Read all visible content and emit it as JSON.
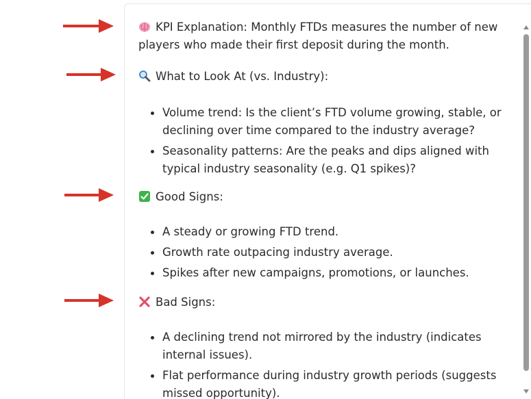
{
  "sections": {
    "kpi": {
      "icon": "brain-icon",
      "text": "KPI Explanation: Monthly FTDs measures the number of new players who made their first deposit during the month."
    },
    "look": {
      "icon": "magnifying-glass-icon",
      "heading": "What to Look At (vs. Industry):",
      "items": [
        "Volume trend: Is the client’s FTD volume growing, stable, or declining over time compared to the industry average?",
        "Seasonality patterns: Are the peaks and dips aligned with typical industry seasonality (e.g. Q1 spikes)?"
      ]
    },
    "good": {
      "icon": "check-mark-icon",
      "heading": "Good Signs:",
      "items": [
        "A steady or growing FTD trend.",
        "Growth rate outpacing industry average.",
        "Spikes after new campaigns, promotions, or launches."
      ]
    },
    "bad": {
      "icon": "cross-mark-icon",
      "heading": "Bad Signs:",
      "items": [
        "A declining trend not mirrored by the industry (indicates internal issues).",
        "Flat performance during industry growth periods (suggests missed opportunity)."
      ]
    }
  },
  "colors": {
    "arrow": "#d6342a",
    "text": "#2b2b2b",
    "check_bg": "#3db24a",
    "cross": "#e0526a"
  }
}
